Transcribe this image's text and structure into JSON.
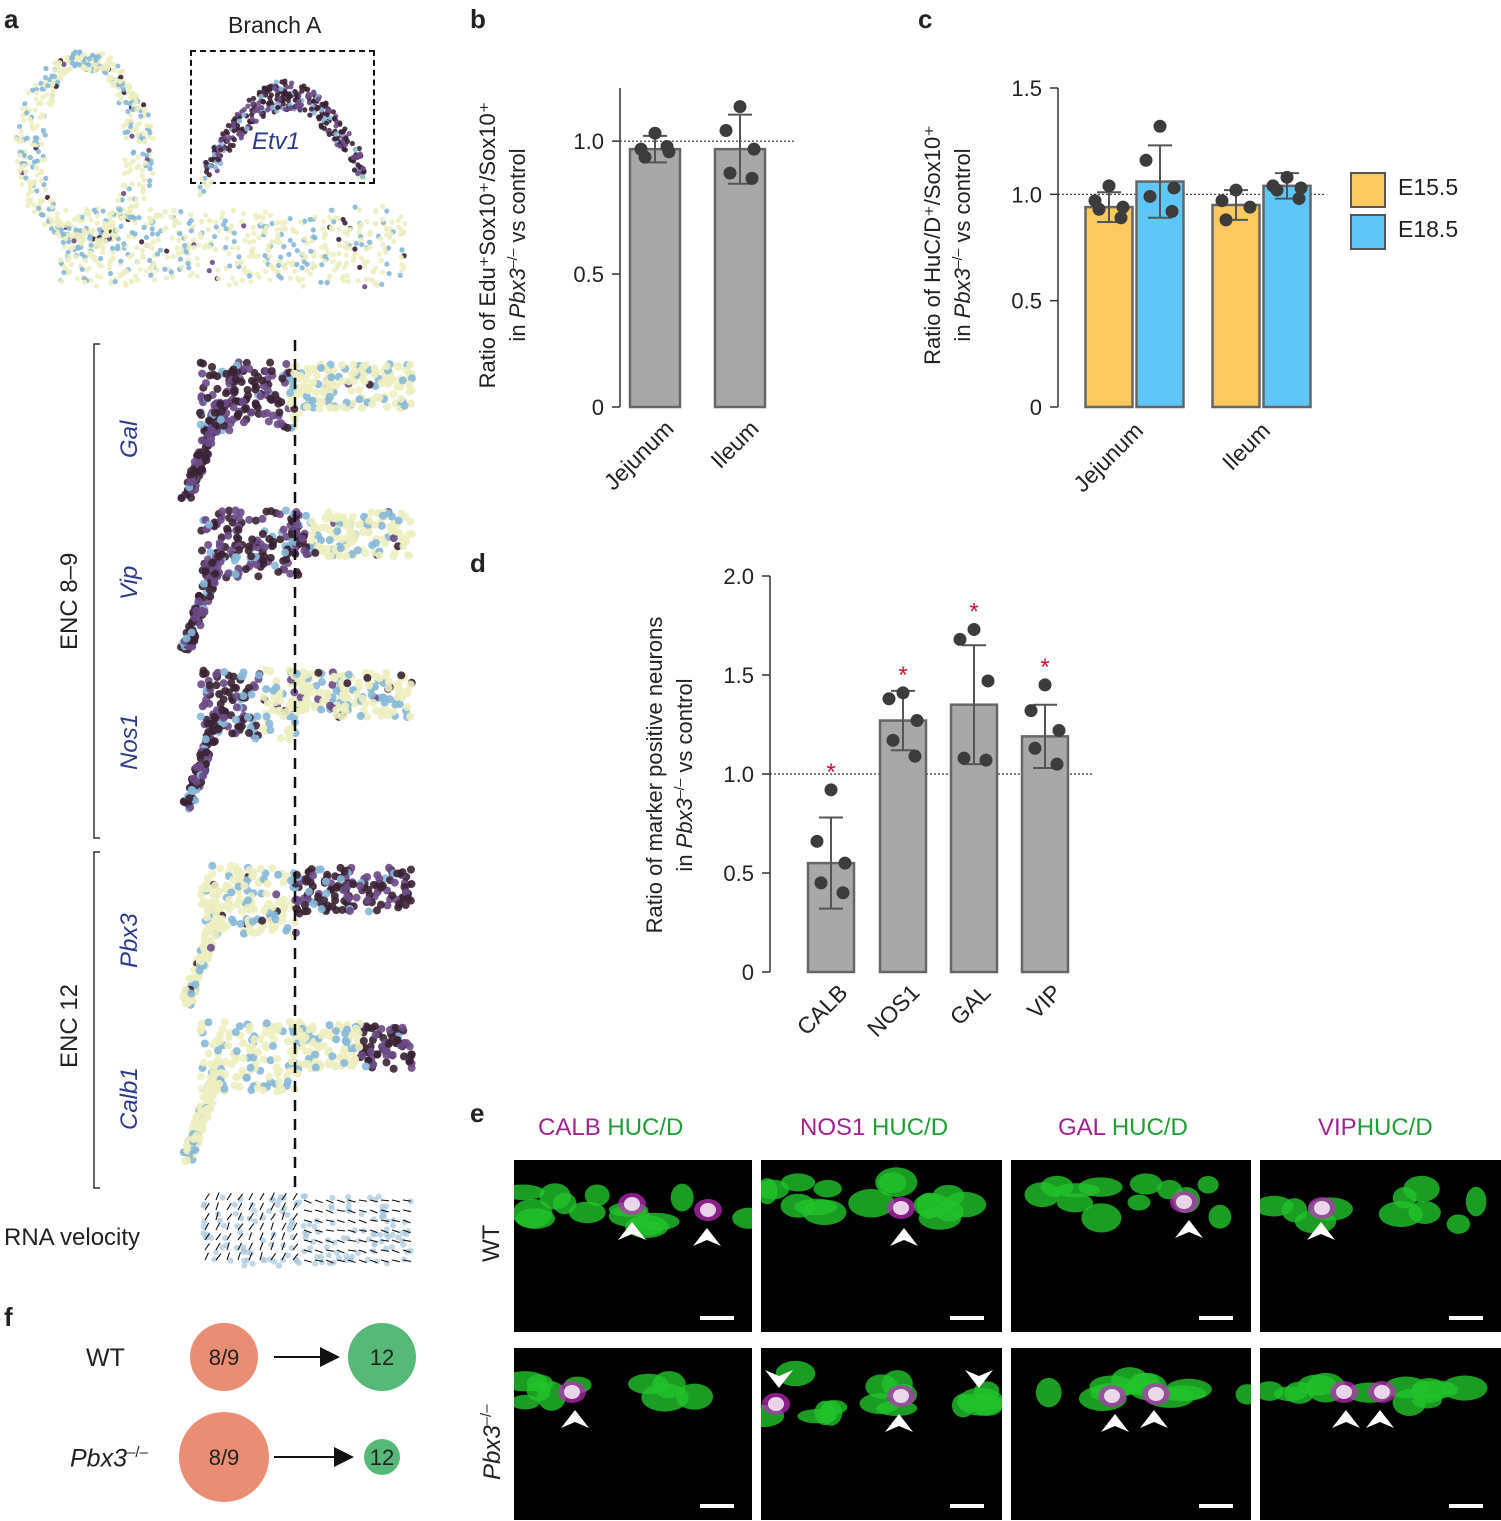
{
  "panels": {
    "a": "a",
    "b": "b",
    "c": "c",
    "d": "d",
    "e": "e",
    "f": "f"
  },
  "panel_a": {
    "branch_label": "Branch A",
    "top_gene": "Etv1",
    "group1": "ENC 8–9",
    "group2": "ENC 12",
    "genes": [
      "Gal",
      "Vip",
      "Nos1",
      "Pbx3",
      "Calb1"
    ],
    "velocity_label": "RNA velocity"
  },
  "chart_data": [
    {
      "panel": "b",
      "type": "bar",
      "categories": [
        "Jejunum",
        "Ileum"
      ],
      "values": [
        0.97,
        0.97
      ],
      "errors": [
        0.05,
        0.13
      ],
      "points": [
        [
          1.03,
          0.97,
          0.96,
          0.94,
          0.98
        ],
        [
          1.13,
          1.04,
          0.97,
          0.88,
          0.86
        ]
      ],
      "ylabel_line1": "Ratio of Edu⁺Sox10⁺/Sox10⁺",
      "ylabel_line2_pre": "in ",
      "ylabel_line2_ital": "Pbx3",
      "ylabel_line2_sup": "–/–",
      "ylabel_line2_post": " vs control",
      "ylim": [
        0,
        1.2
      ],
      "yticks": [
        "0",
        "0.5",
        "1.0"
      ],
      "reference_line": 1.0,
      "color": "#a8a8a8"
    },
    {
      "panel": "c",
      "type": "bar",
      "categories": [
        "Jejunum",
        "Ileum"
      ],
      "series": [
        {
          "name": "E15.5",
          "color": "#fcc860",
          "values": [
            0.94,
            0.95
          ],
          "errors": [
            0.07,
            0.07
          ],
          "points": [
            [
              1.04,
              0.97,
              0.94,
              0.93,
              0.89
            ],
            [
              1.02,
              0.97,
              0.94,
              0.88
            ]
          ]
        },
        {
          "name": "E18.5",
          "color": "#5ec7f8",
          "values": [
            1.06,
            1.04
          ],
          "errors": [
            0.17,
            0.06
          ],
          "points": [
            [
              1.32,
              1.16,
              1.03,
              0.99,
              0.92
            ],
            [
              1.08,
              1.04,
              1.03,
              1.02,
              0.98
            ]
          ]
        }
      ],
      "ylabel_line1": "Ratio of HuC/D⁺/Sox10⁺",
      "ylabel_line2_pre": "in ",
      "ylabel_line2_ital": "Pbx3",
      "ylabel_line2_sup": "–/–",
      "ylabel_line2_post": " vs control",
      "ylim": [
        0,
        1.5
      ],
      "yticks": [
        "0",
        "0.5",
        "1.0",
        "1.5"
      ],
      "reference_line": 1.0
    },
    {
      "panel": "d",
      "type": "bar",
      "categories": [
        "CALB",
        "NOS1",
        "GAL",
        "VIP"
      ],
      "values": [
        0.55,
        1.27,
        1.35,
        1.19
      ],
      "errors": [
        0.23,
        0.15,
        0.3,
        0.16
      ],
      "points": [
        [
          0.92,
          0.66,
          0.55,
          0.45,
          0.4
        ],
        [
          1.41,
          1.38,
          1.27,
          1.17,
          1.09
        ],
        [
          1.73,
          1.68,
          1.47,
          1.08,
          1.07
        ],
        [
          1.45,
          1.32,
          1.22,
          1.13,
          1.05
        ]
      ],
      "significance": [
        "*",
        "*",
        "*",
        "*"
      ],
      "ylabel_line1": "Ratio of marker positive neurons",
      "ylabel_line2_pre": "in ",
      "ylabel_line2_ital": "Pbx3",
      "ylabel_line2_sup": "–/–",
      "ylabel_line2_post": " vs control",
      "ylim": [
        0,
        2.0
      ],
      "yticks": [
        "0",
        "0.5",
        "1.0",
        "1.5",
        "2.0"
      ],
      "reference_line": 1.0,
      "color": "#a8a8a8"
    }
  ],
  "panel_e": {
    "columns": [
      {
        "marker": "CALB",
        "huc": "HUC/D"
      },
      {
        "marker": "NOS1",
        "huc": "HUC/D"
      },
      {
        "marker": "GAL",
        "huc": "HUC/D"
      },
      {
        "marker": "VIP",
        "huc": "HUC/D"
      }
    ],
    "rows": [
      "WT",
      "Pbx3"
    ],
    "row2_sup": "–/–"
  },
  "panel_f": {
    "wt_label": "WT",
    "ko_label": "Pbx3",
    "ko_sup": "–/–",
    "source": "8/9",
    "target": "12",
    "colors": {
      "source": "#e98d74",
      "target": "#56b977"
    }
  },
  "colors": {
    "star": "#c8102e",
    "dark": "#3a2233",
    "purple": "#6b4a86",
    "blue": "#86b8d8",
    "pale": "#edeec0"
  }
}
